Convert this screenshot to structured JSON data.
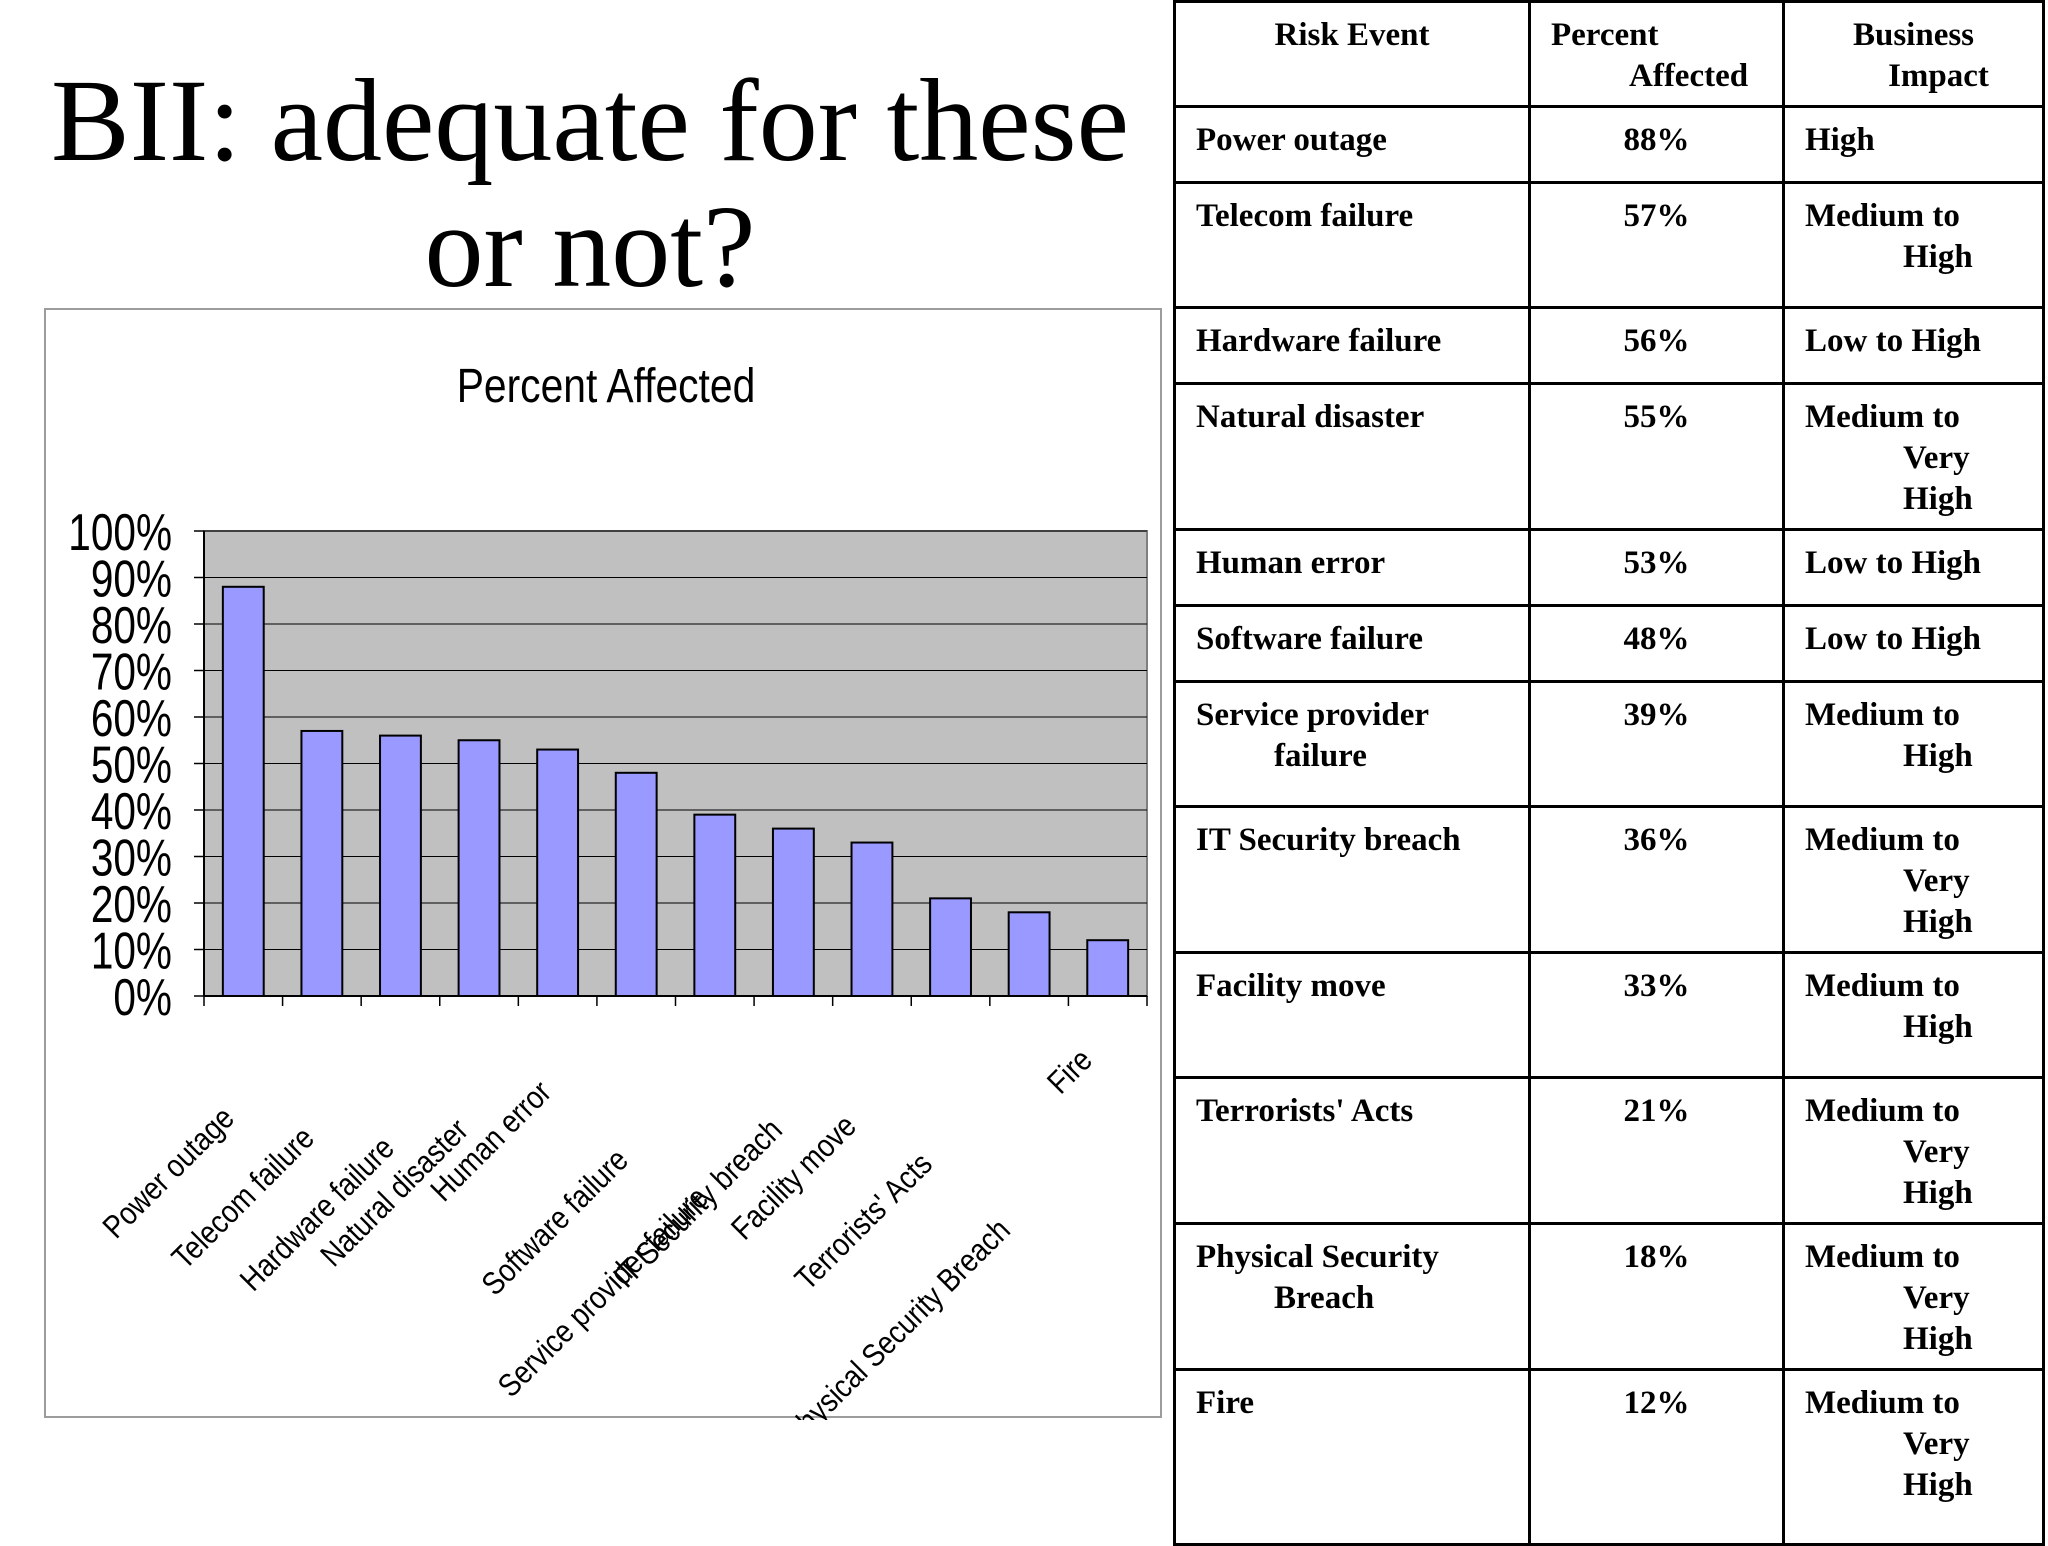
{
  "slide": {
    "title_line1": "BII: adequate for these",
    "title_line2": "or not?"
  },
  "table": {
    "headers": {
      "risk_event": "Risk Event",
      "percent_line1": "Percent",
      "percent_line2": "Affected",
      "impact_line1": "Business",
      "impact_line2": "Impact"
    },
    "rows": [
      {
        "event": [
          "Power outage"
        ],
        "percent": "88%",
        "impact": [
          "High"
        ]
      },
      {
        "event": [
          "Telecom failure"
        ],
        "percent": "57%",
        "impact": [
          "Medium to",
          "High"
        ]
      },
      {
        "event": [
          "Hardware failure"
        ],
        "percent": "56%",
        "impact": [
          "Low to High"
        ]
      },
      {
        "event": [
          "Natural disaster"
        ],
        "percent": "55%",
        "impact": [
          "Medium to",
          "Very",
          "High"
        ]
      },
      {
        "event": [
          "Human error"
        ],
        "percent": "53%",
        "impact": [
          "Low to High"
        ]
      },
      {
        "event": [
          "Software failure"
        ],
        "percent": "48%",
        "impact": [
          "Low to High"
        ]
      },
      {
        "event": [
          "Service provider",
          "failure"
        ],
        "percent": "39%",
        "impact": [
          "Medium to",
          "High"
        ]
      },
      {
        "event": [
          "IT Security breach"
        ],
        "percent": "36%",
        "impact": [
          "Medium to",
          "Very",
          "High"
        ]
      },
      {
        "event": [
          "Facility move"
        ],
        "percent": "33%",
        "impact": [
          "Medium to",
          "High"
        ]
      },
      {
        "event": [
          "Terrorists' Acts"
        ],
        "percent": "21%",
        "impact": [
          "Medium to",
          "Very",
          "High"
        ]
      },
      {
        "event": [
          "Physical Security",
          "Breach"
        ],
        "percent": "18%",
        "impact": [
          "Medium to",
          "Very",
          "High"
        ]
      },
      {
        "event": [
          "Fire"
        ],
        "percent": "12%",
        "impact": [
          "Medium to",
          "Very",
          "High"
        ]
      }
    ]
  },
  "chart_data": {
    "type": "bar",
    "title": "Percent Affected",
    "xlabel": "",
    "ylabel": "",
    "categories": [
      "Power outage",
      "Telecom failure",
      "Hardware failure",
      "Natural disaster",
      "Human error",
      "Software failure",
      "Service provider failure",
      "IT Security breach",
      "Facility move",
      "Terrorists' Acts",
      "Physical Security Breach",
      "Fire"
    ],
    "values": [
      88,
      57,
      56,
      55,
      53,
      48,
      39,
      36,
      33,
      21,
      18,
      12
    ],
    "ylim": [
      0,
      100
    ],
    "yticks": [
      0,
      10,
      20,
      30,
      40,
      50,
      60,
      70,
      80,
      90,
      100
    ],
    "ytick_labels": [
      "0%",
      "10%",
      "20%",
      "30%",
      "40%",
      "50%",
      "60%",
      "70%",
      "80%",
      "90%",
      "100%"
    ],
    "grid": true,
    "legend": "none",
    "colors": {
      "bar_fill": "#9999ff",
      "plot_background": "#c0c0c0",
      "gridline": "#000000"
    }
  }
}
